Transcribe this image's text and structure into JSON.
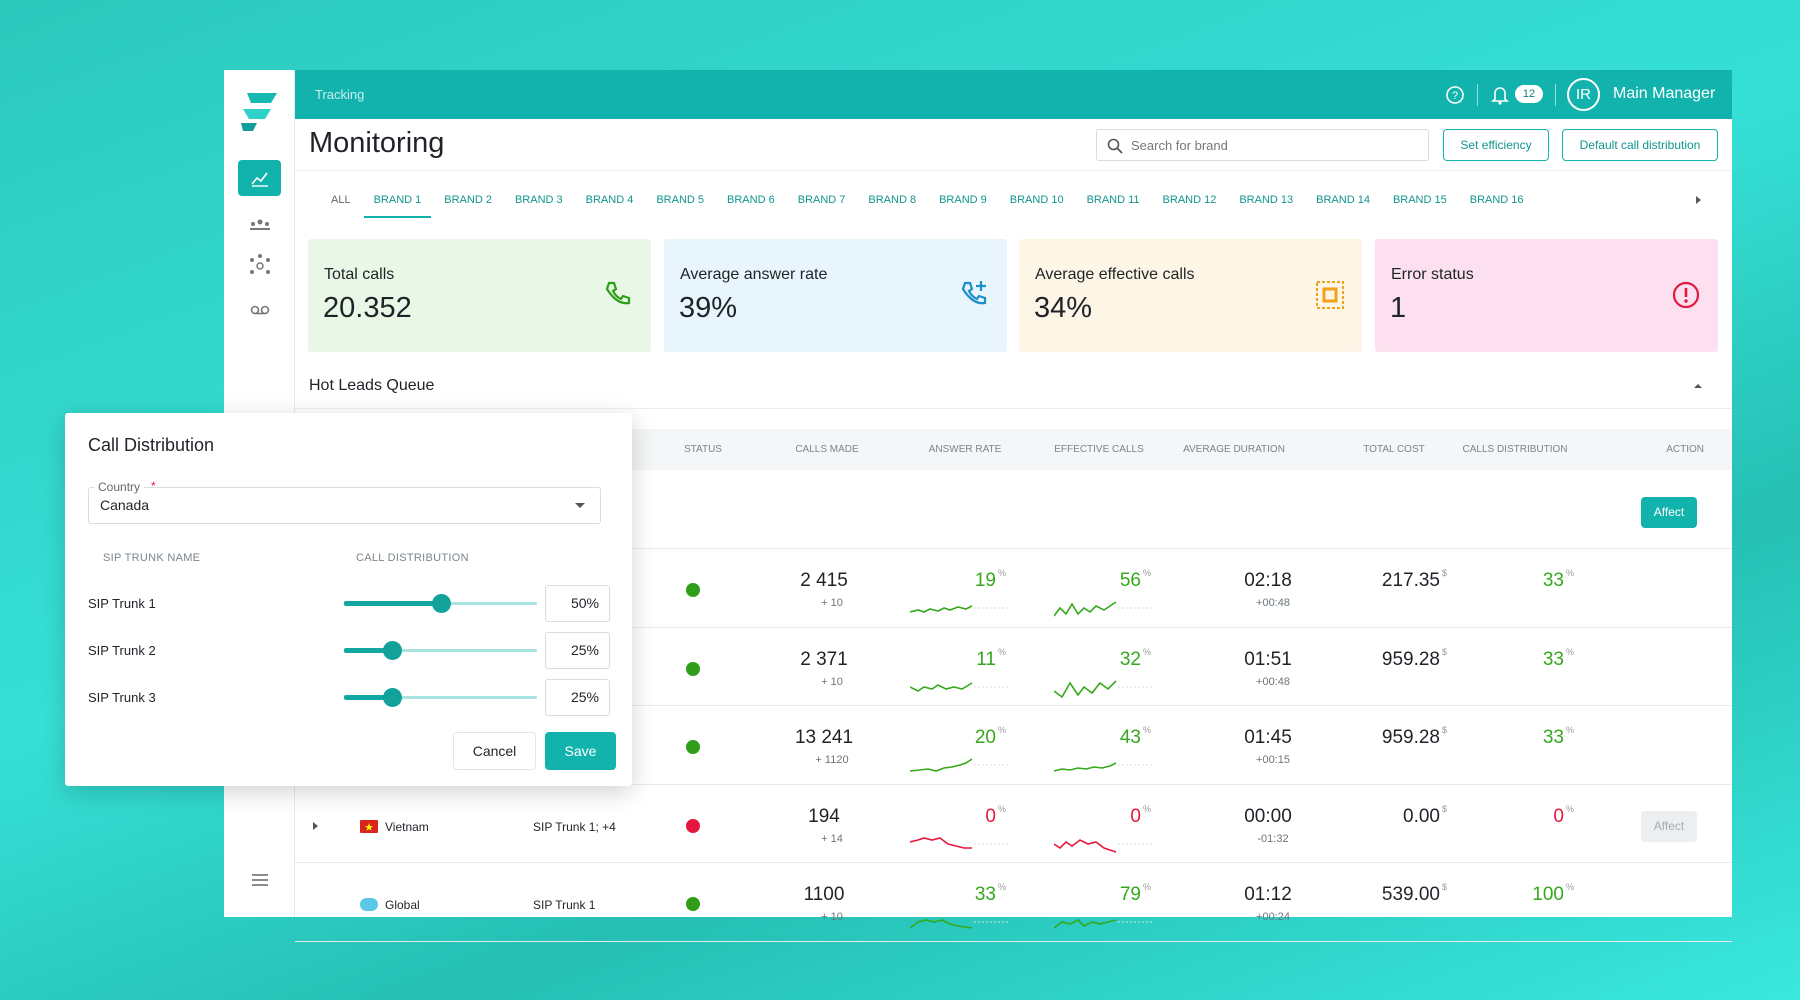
{
  "header": {
    "breadcrumb": "Tracking",
    "notifications": "12",
    "user_initials": "IR",
    "user_name": "Main Manager"
  },
  "page": {
    "title": "Monitoring",
    "search_placeholder": "Search for brand",
    "buttons": [
      "Set efficiency",
      "Default call distribution"
    ]
  },
  "tabs": {
    "items": [
      "ALL",
      "BRAND 1",
      "BRAND 2",
      "BRAND 3",
      "BRAND 4",
      "BRAND 5",
      "BRAND 6",
      "BRAND 7",
      "BRAND 8",
      "BRAND 9",
      "BRAND 10",
      "BRAND 11",
      "BRAND 12",
      "BRAND 13",
      "BRAND 14",
      "BRAND 15",
      "BRAND 16"
    ],
    "active": 1
  },
  "cards": [
    {
      "label": "Total calls",
      "value": "20.352",
      "color": "#e9f8e6",
      "icon_color": "#2e9e1a"
    },
    {
      "label": "Average answer rate",
      "value": "39%",
      "color": "#e8f5fc",
      "icon_color": "#1c8fc9"
    },
    {
      "label": "Average effective calls",
      "value": "34%",
      "color": "#fdf5e6",
      "icon_color": "#f0a21a"
    },
    {
      "label": "Error status",
      "value": "1",
      "color": "#fde0ef",
      "icon_color": "#e5173f"
    }
  ],
  "section": {
    "title": "Hot Leads Queue"
  },
  "table": {
    "columns": [
      "STATUS",
      "CALLS MADE",
      "ANSWER RATE",
      "EFFECTIVE CALLS",
      "AVERAGE DURATION",
      "TOTAL COST",
      "CALLS DISTRIBUTION",
      "ACTION"
    ],
    "percent_sign": "%",
    "currency_sign": "$",
    "action_label": "Affect",
    "rows": [
      {
        "calls_made": "2 415",
        "calls_delta": "+ 10",
        "answer_rate": "19",
        "effective_calls": "56",
        "duration": "02:18",
        "duration_delta": "+00:48",
        "total_cost": "217.35",
        "distribution": "33",
        "status_color": "#2e9e1a",
        "value_color": "#35a81c"
      },
      {
        "calls_made": "2 371",
        "calls_delta": "+ 10",
        "answer_rate": "11",
        "effective_calls": "32",
        "duration": "01:51",
        "duration_delta": "+00:48",
        "total_cost": "959.28",
        "distribution": "33",
        "status_color": "#2e9e1a",
        "value_color": "#35a81c"
      },
      {
        "calls_made": "13 241",
        "calls_delta": "+ 1120",
        "answer_rate": "20",
        "effective_calls": "43",
        "duration": "01:45",
        "duration_delta": "+00:15",
        "total_cost": "959.28",
        "distribution": "33",
        "status_color": "#2e9e1a",
        "value_color": "#35a81c"
      },
      {
        "country": "Vietnam",
        "sip_trunk": "SIP Trunk 1; +4",
        "flag_color": "#da251d",
        "expandable": true,
        "calls_made": "194",
        "calls_delta": "+ 14",
        "answer_rate": "0",
        "effective_calls": "0",
        "duration": "00:00",
        "duration_delta": "-01:32",
        "total_cost": "0.00",
        "distribution": "0",
        "status_color": "#e5173f",
        "value_color": "#e5173f",
        "action_disabled": true
      },
      {
        "country": "Global",
        "sip_trunk": "SIP Trunk 1",
        "flag_color": "#5bc8e8",
        "calls_made": "1100",
        "calls_delta": "+ 10",
        "answer_rate": "33",
        "effective_calls": "79",
        "duration": "01:12",
        "duration_delta": "+00:24",
        "total_cost": "539.00",
        "distribution": "100",
        "status_color": "#2e9e1a",
        "value_color": "#35a81c"
      }
    ]
  },
  "dialog": {
    "title": "Call Distribution",
    "country_label": "Country",
    "required_mark": "*",
    "country": "Canada",
    "columns": [
      "SIP TRUNK NAME",
      "CALL DISTRIBUTION"
    ],
    "trunks": [
      {
        "name": "SIP Trunk 1",
        "distribution": {
          "value": 50,
          "label": "50%"
        }
      },
      {
        "name": "SIP Trunk 2",
        "distribution": {
          "value": 25,
          "label": "25%"
        }
      },
      {
        "name": "SIP Trunk 3",
        "distribution": {
          "value": 25,
          "label": "25%"
        }
      }
    ],
    "cancel": "Cancel",
    "save": "Save"
  }
}
